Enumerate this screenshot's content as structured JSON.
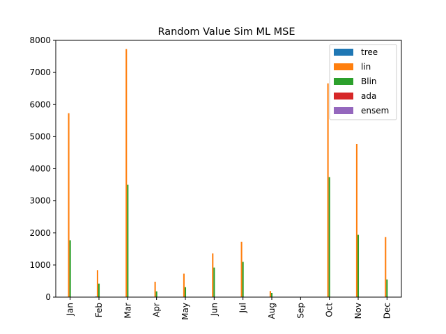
{
  "chart_data": {
    "type": "bar",
    "title": "Random Value Sim ML MSE",
    "xlabel": "",
    "ylabel": "",
    "categories": [
      "Jan",
      "Feb",
      "Mar",
      "Apr",
      "May",
      "Jun",
      "Jul",
      "Aug",
      "Sep",
      "Oct",
      "Nov",
      "Dec"
    ],
    "series": [
      {
        "name": "tree",
        "color": "#1f77b4",
        "values": [
          0,
          20,
          0,
          0,
          0,
          0,
          0,
          0,
          0,
          0,
          0,
          0
        ]
      },
      {
        "name": "lin",
        "color": "#ff7f0e",
        "values": [
          5730,
          840,
          7730,
          480,
          730,
          1360,
          1720,
          190,
          0,
          6660,
          4770,
          1870
        ]
      },
      {
        "name": "Blin",
        "color": "#2ca02c",
        "values": [
          1770,
          420,
          3500,
          180,
          310,
          920,
          1100,
          130,
          0,
          3740,
          1940,
          550
        ]
      },
      {
        "name": "ada",
        "color": "#d62728",
        "values": [
          0,
          0,
          0,
          0,
          0,
          0,
          0,
          0,
          0,
          0,
          0,
          0
        ]
      },
      {
        "name": "ensem",
        "color": "#9467bd",
        "values": [
          0,
          10,
          0,
          0,
          0,
          0,
          0,
          0,
          0,
          0,
          0,
          0
        ]
      }
    ],
    "ylim": [
      0,
      8000
    ],
    "yticks": [
      0,
      1000,
      2000,
      3000,
      4000,
      5000,
      6000,
      7000,
      8000
    ],
    "grid": false,
    "legend": "top-right"
  }
}
